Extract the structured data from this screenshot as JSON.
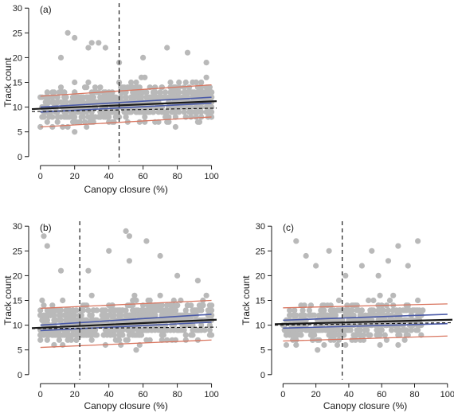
{
  "chart_data": [
    {
      "type": "scatter",
      "panel_label": "(a)",
      "xlabel": "Canopy closure (%)",
      "ylabel": "Track count",
      "xlim": [
        -5,
        103
      ],
      "ylim": [
        -1,
        31
      ],
      "x_ticks": [
        0,
        20,
        40,
        60,
        80,
        100
      ],
      "y_ticks": [
        0,
        5,
        10,
        15,
        20,
        25,
        30
      ],
      "grid": false,
      "threshold_x": 46,
      "points_summary": {
        "n": 700,
        "x_range": [
          0,
          100
        ],
        "y_min": 3,
        "y_max": 25,
        "seed": 11
      },
      "outliers": [
        [
          16,
          25
        ],
        [
          20,
          24
        ],
        [
          30,
          23
        ],
        [
          34,
          23
        ],
        [
          28,
          22
        ],
        [
          38,
          22
        ],
        [
          74,
          22
        ],
        [
          86,
          21
        ],
        [
          60,
          20
        ],
        [
          12,
          20
        ],
        [
          97,
          19
        ],
        [
          46,
          19
        ]
      ],
      "lines": {
        "black_fit": [
          [
            -5,
            9.6
          ],
          [
            103,
            11.2
          ]
        ],
        "blue_upper": [
          [
            0,
            10.0
          ],
          [
            100,
            12.0
          ]
        ],
        "blue_lower": [
          [
            0,
            9.0
          ],
          [
            100,
            10.8
          ]
        ],
        "red_upper": [
          [
            0,
            12.2
          ],
          [
            100,
            14.5
          ]
        ],
        "red_lower": [
          [
            0,
            6.0
          ],
          [
            100,
            8.0
          ]
        ],
        "dashed_reference": [
          [
            -5,
            9.1
          ],
          [
            103,
            9.8
          ]
        ]
      }
    },
    {
      "type": "scatter",
      "panel_label": "(b)",
      "xlabel": "Canopy closure (%)",
      "ylabel": "Track count",
      "xlim": [
        -5,
        103
      ],
      "ylim": [
        -1,
        31
      ],
      "x_ticks": [
        0,
        20,
        40,
        60,
        80,
        100
      ],
      "y_ticks": [
        0,
        5,
        10,
        15,
        20,
        25,
        30
      ],
      "grid": false,
      "threshold_x": 23,
      "points_summary": {
        "n": 700,
        "x_range": [
          0,
          100
        ],
        "y_min": 4,
        "y_max": 28,
        "seed": 23
      },
      "outliers": [
        [
          2,
          28
        ],
        [
          50,
          29
        ],
        [
          52,
          28
        ],
        [
          62,
          27
        ],
        [
          4,
          26
        ],
        [
          40,
          25
        ],
        [
          70,
          24
        ],
        [
          52,
          23
        ],
        [
          12,
          21
        ],
        [
          80,
          20
        ],
        [
          92,
          19
        ],
        [
          28,
          21
        ]
      ],
      "lines": {
        "black_fit": [
          [
            -5,
            9.4
          ],
          [
            103,
            11.1
          ]
        ],
        "blue_upper": [
          [
            0,
            10.0
          ],
          [
            100,
            12.2
          ]
        ],
        "blue_lower": [
          [
            0,
            8.9
          ],
          [
            100,
            10.6
          ]
        ],
        "red_upper": [
          [
            0,
            13.4
          ],
          [
            100,
            15.0
          ]
        ],
        "red_lower": [
          [
            0,
            5.5
          ],
          [
            100,
            7.0
          ]
        ],
        "dashed_reference": [
          [
            -5,
            9.3
          ],
          [
            103,
            9.6
          ]
        ]
      }
    },
    {
      "type": "scatter",
      "panel_label": "(c)",
      "xlabel": "Canopy closure (%)",
      "ylabel": "Track count",
      "xlim": [
        -5,
        103
      ],
      "ylim": [
        -1,
        31
      ],
      "x_ticks": [
        0,
        20,
        40,
        60,
        80,
        100
      ],
      "y_ticks": [
        0,
        5,
        10,
        15,
        20,
        25,
        30
      ],
      "grid": false,
      "threshold_x": 36,
      "points_summary": {
        "n": 450,
        "x_range": [
          0,
          85
        ],
        "y_min": 5,
        "y_max": 27,
        "seed": 37
      },
      "outliers": [
        [
          8,
          27
        ],
        [
          82,
          27
        ],
        [
          14,
          24
        ],
        [
          54,
          25
        ],
        [
          28,
          25
        ],
        [
          70,
          26
        ],
        [
          64,
          23
        ],
        [
          20,
          22
        ],
        [
          48,
          22
        ],
        [
          76,
          22
        ],
        [
          38,
          20
        ],
        [
          58,
          20
        ]
      ],
      "lines": {
        "black_fit": [
          [
            -5,
            10.2
          ],
          [
            103,
            11.1
          ]
        ],
        "blue_upper": [
          [
            0,
            11.0
          ],
          [
            100,
            12.2
          ]
        ],
        "blue_lower": [
          [
            0,
            9.4
          ],
          [
            100,
            10.3
          ]
        ],
        "red_upper": [
          [
            0,
            13.5
          ],
          [
            100,
            14.3
          ]
        ],
        "red_lower": [
          [
            0,
            6.8
          ],
          [
            100,
            7.8
          ]
        ],
        "dashed_reference": [
          [
            -5,
            10.0
          ],
          [
            103,
            10.5
          ]
        ]
      }
    }
  ],
  "colors": {
    "points": "#b9b9b9",
    "black_fit": "#1a1a1a",
    "blue": "#4a5aa8",
    "red": "#d97660",
    "axis": "#1a1a1a"
  }
}
